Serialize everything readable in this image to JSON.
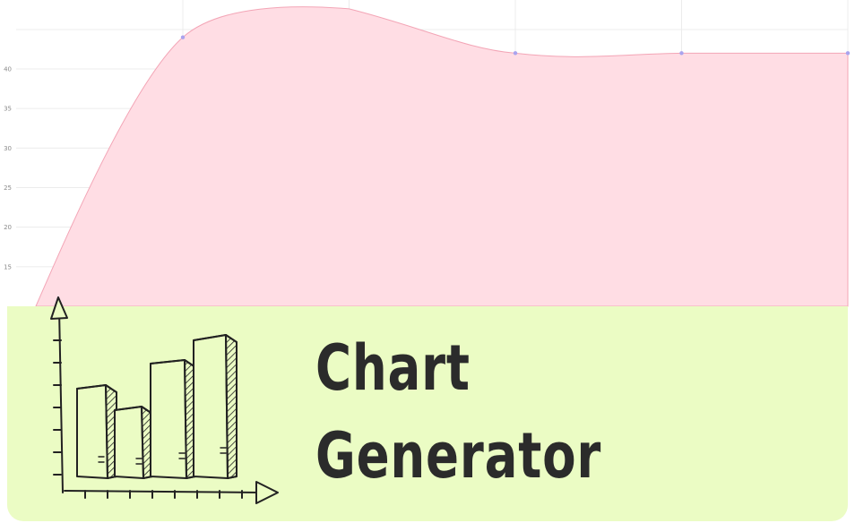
{
  "banner": {
    "title_line1": "Chart",
    "title_line2": "Generator"
  },
  "colors": {
    "area_fill": "#ffdde4",
    "area_stroke": "#f3a5b6",
    "marker": "#a9a3ee",
    "grid": "#ececec",
    "banner_bg": "#ebfcc4",
    "title": "#2b2b2b"
  },
  "chart_data": {
    "type": "area",
    "x": [
      0,
      1,
      2,
      3,
      4
    ],
    "values": [
      44,
      47.6,
      42,
      42,
      42
    ],
    "y_ticks": [
      "15",
      "20",
      "25",
      "30",
      "35",
      "40"
    ],
    "ylim": [
      10,
      48
    ],
    "grid": true
  }
}
